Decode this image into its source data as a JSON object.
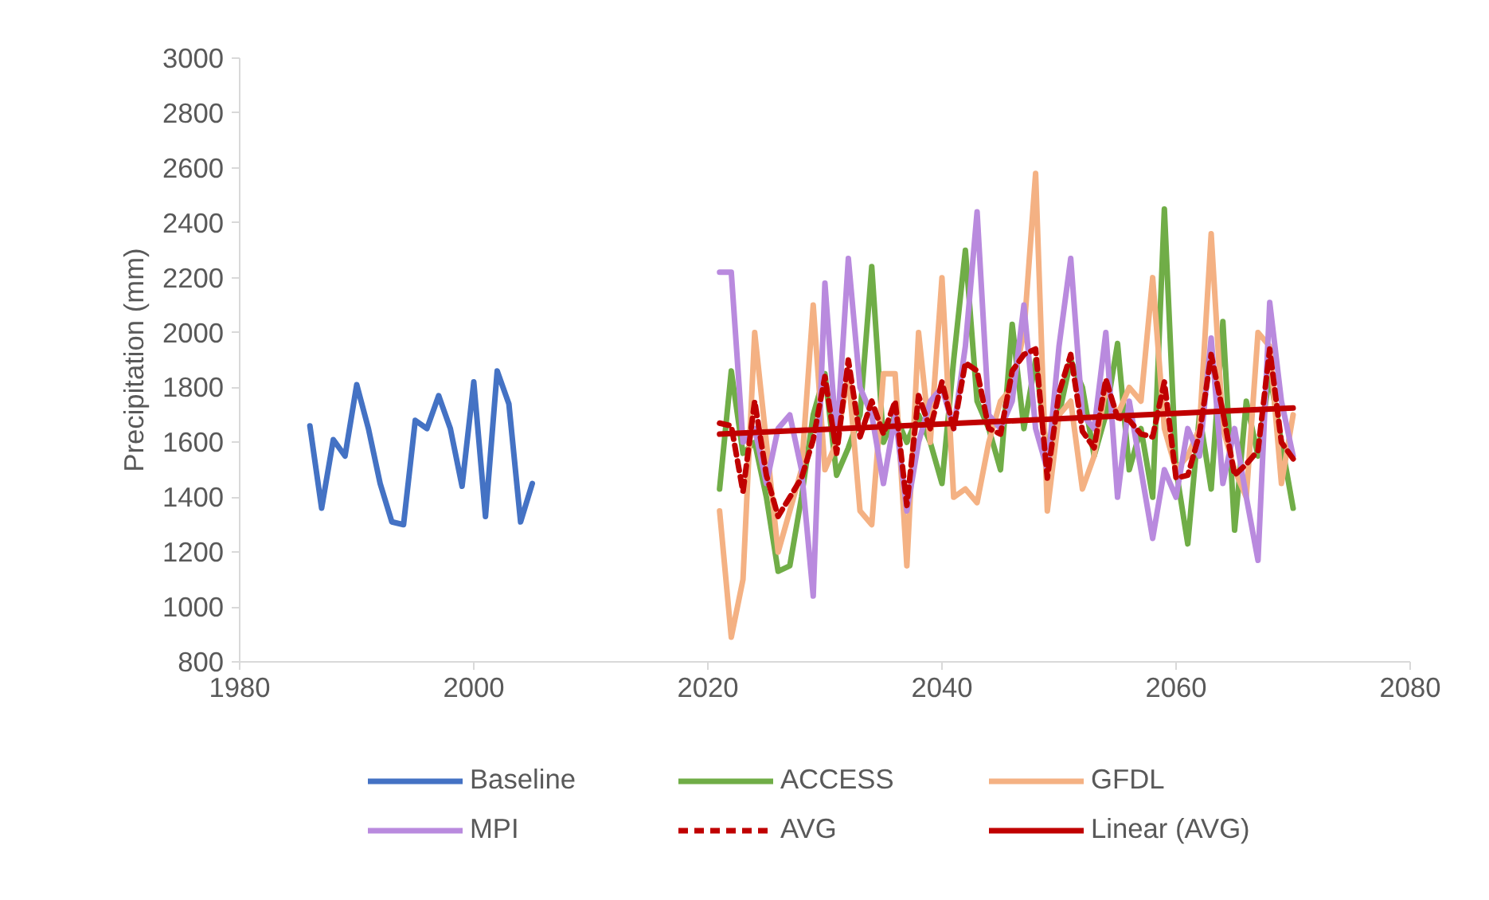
{
  "chart_data": {
    "type": "line",
    "ylabel": "Precipitation (mm)",
    "xlim": [
      1980,
      2080
    ],
    "xticks": [
      1980,
      2000,
      2020,
      2040,
      2060,
      2080
    ],
    "ylim": [
      800,
      3000
    ],
    "yticks": [
      800,
      1000,
      1200,
      1400,
      1600,
      1800,
      2000,
      2200,
      2400,
      2600,
      2800,
      3000
    ],
    "grid": false,
    "legend": "bottom",
    "marker": "none",
    "series": [
      {
        "name": "Baseline",
        "color": "#4472c4",
        "x": [
          1986,
          1987,
          1988,
          1989,
          1990,
          1991,
          1992,
          1993,
          1994,
          1995,
          1996,
          1997,
          1998,
          1999,
          2000,
          2001,
          2002,
          2003,
          2004,
          2005
        ],
        "values": [
          1660,
          1360,
          1610,
          1550,
          1810,
          1650,
          1450,
          1310,
          1300,
          1680,
          1650,
          1770,
          1650,
          1440,
          1820,
          1330,
          1860,
          1740,
          1310,
          1450
        ]
      },
      {
        "name": "ACCESS",
        "color": "#70ad47",
        "x": [
          2021,
          2022,
          2023,
          2024,
          2025,
          2026,
          2027,
          2028,
          2029,
          2030,
          2031,
          2032,
          2033,
          2034,
          2035,
          2036,
          2037,
          2038,
          2039,
          2040,
          2041,
          2042,
          2043,
          2044,
          2045,
          2046,
          2047,
          2048,
          2049,
          2050,
          2051,
          2052,
          2053,
          2054,
          2055,
          2056,
          2057,
          2058,
          2059,
          2060,
          2061,
          2062,
          2063,
          2064,
          2065,
          2066,
          2067,
          2068,
          2069,
          2070
        ],
        "values": [
          1430,
          1860,
          1560,
          1600,
          1400,
          1130,
          1150,
          1400,
          1700,
          1850,
          1480,
          1580,
          1700,
          2240,
          1600,
          1700,
          1600,
          1700,
          1600,
          1450,
          1900,
          2300,
          1750,
          1650,
          1500,
          2030,
          1650,
          1900,
          1550,
          1700,
          1900,
          1800,
          1550,
          1700,
          1960,
          1500,
          1650,
          1400,
          2450,
          1500,
          1230,
          1700,
          1430,
          2040,
          1280,
          1750,
          1550,
          1850,
          1600,
          1360
        ]
      },
      {
        "name": "GFDL",
        "color": "#f4b183",
        "x": [
          2021,
          2022,
          2023,
          2024,
          2025,
          2026,
          2027,
          2028,
          2029,
          2030,
          2031,
          2032,
          2033,
          2034,
          2035,
          2036,
          2037,
          2038,
          2039,
          2040,
          2041,
          2042,
          2043,
          2044,
          2045,
          2046,
          2047,
          2048,
          2049,
          2050,
          2051,
          2052,
          2053,
          2054,
          2055,
          2056,
          2057,
          2058,
          2059,
          2060,
          2061,
          2062,
          2063,
          2064,
          2065,
          2066,
          2067,
          2068,
          2069,
          2070
        ],
        "values": [
          1350,
          890,
          1100,
          2000,
          1600,
          1200,
          1350,
          1500,
          2100,
          1500,
          1600,
          1850,
          1350,
          1300,
          1850,
          1850,
          1150,
          2000,
          1600,
          2200,
          1400,
          1430,
          1380,
          1600,
          1750,
          1800,
          2000,
          2580,
          1350,
          1700,
          1750,
          1430,
          1550,
          1800,
          1700,
          1800,
          1750,
          2200,
          1650,
          1500,
          1550,
          1650,
          2360,
          1650,
          1500,
          1400,
          2000,
          1950,
          1450,
          1700
        ]
      },
      {
        "name": "MPI",
        "color": "#b98ade",
        "x": [
          2021,
          2022,
          2023,
          2024,
          2025,
          2026,
          2027,
          2028,
          2029,
          2030,
          2031,
          2032,
          2033,
          2034,
          2035,
          2036,
          2037,
          2038,
          2039,
          2040,
          2041,
          2042,
          2043,
          2044,
          2045,
          2046,
          2047,
          2048,
          2049,
          2050,
          2051,
          2052,
          2053,
          2054,
          2055,
          2056,
          2057,
          2058,
          2059,
          2060,
          2061,
          2062,
          2063,
          2064,
          2065,
          2066,
          2067,
          2068,
          2069,
          2070
        ],
        "values": [
          2220,
          2220,
          1600,
          1650,
          1450,
          1650,
          1700,
          1500,
          1040,
          2180,
          1600,
          2270,
          1800,
          1700,
          1450,
          1700,
          1350,
          1600,
          1750,
          1800,
          1650,
          1950,
          2440,
          1700,
          1650,
          1750,
          2100,
          1650,
          1500,
          1950,
          2270,
          1700,
          1650,
          2000,
          1400,
          1750,
          1500,
          1250,
          1500,
          1400,
          1650,
          1550,
          1980,
          1450,
          1650,
          1400,
          1170,
          2110,
          1750,
          1550
        ]
      },
      {
        "name": "AVG",
        "color": "#c00000",
        "line_style": "dashed",
        "x": [
          2021,
          2022,
          2023,
          2024,
          2025,
          2026,
          2027,
          2028,
          2029,
          2030,
          2031,
          2032,
          2033,
          2034,
          2035,
          2036,
          2037,
          2038,
          2039,
          2040,
          2041,
          2042,
          2043,
          2044,
          2045,
          2046,
          2047,
          2048,
          2049,
          2050,
          2051,
          2052,
          2053,
          2054,
          2055,
          2056,
          2057,
          2058,
          2059,
          2060,
          2061,
          2062,
          2063,
          2064,
          2065,
          2066,
          2067,
          2068,
          2069,
          2070
        ],
        "values": [
          1670,
          1660,
          1420,
          1750,
          1480,
          1330,
          1400,
          1470,
          1610,
          1840,
          1560,
          1900,
          1620,
          1750,
          1630,
          1750,
          1370,
          1770,
          1650,
          1820,
          1650,
          1890,
          1860,
          1650,
          1630,
          1860,
          1920,
          1940,
          1470,
          1780,
          1920,
          1640,
          1580,
          1830,
          1690,
          1680,
          1630,
          1620,
          1820,
          1470,
          1480,
          1630,
          1920,
          1710,
          1480,
          1520,
          1570,
          1940,
          1600,
          1540
        ]
      },
      {
        "name": "Linear (AVG)",
        "color": "#c00000",
        "line_style": "solid",
        "x": [
          2021,
          2070
        ],
        "values": [
          1630,
          1725
        ]
      }
    ]
  }
}
